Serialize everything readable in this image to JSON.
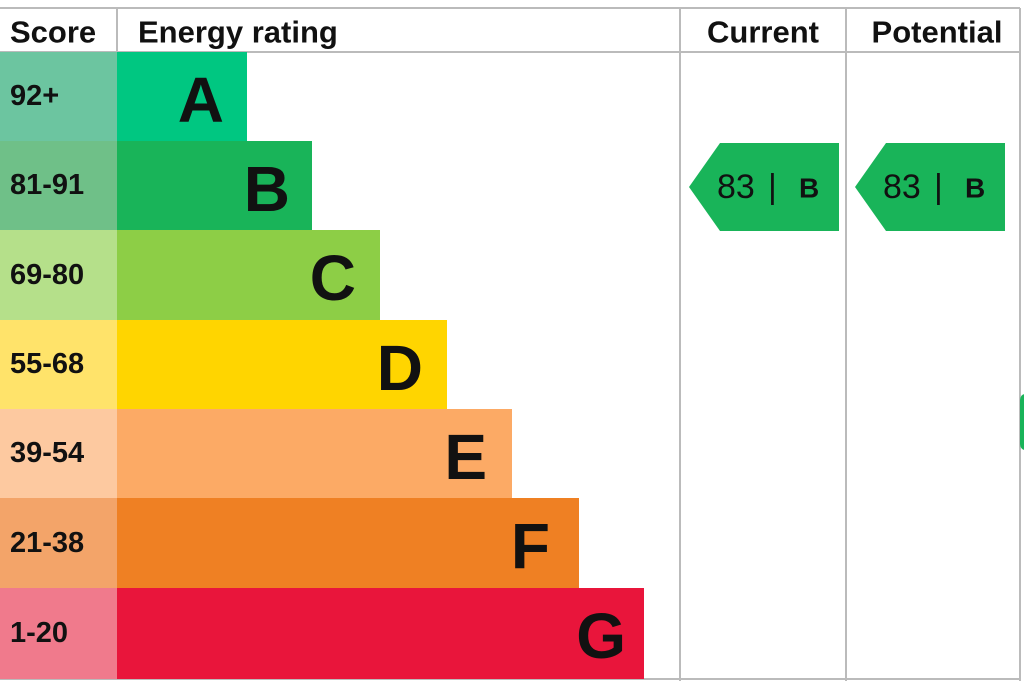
{
  "header": {
    "score": "Score",
    "rating": "Energy rating",
    "current": "Current",
    "potential": "Potential"
  },
  "bands": [
    {
      "score": "92+",
      "letter": "A"
    },
    {
      "score": "81-91",
      "letter": "B"
    },
    {
      "score": "69-80",
      "letter": "C"
    },
    {
      "score": "55-68",
      "letter": "D"
    },
    {
      "score": "39-54",
      "letter": "E"
    },
    {
      "score": "21-38",
      "letter": "F"
    },
    {
      "score": "1-20",
      "letter": "G"
    }
  ],
  "current": {
    "value": "83",
    "letter": "B"
  },
  "potential": {
    "value": "83",
    "letter": "B"
  }
}
